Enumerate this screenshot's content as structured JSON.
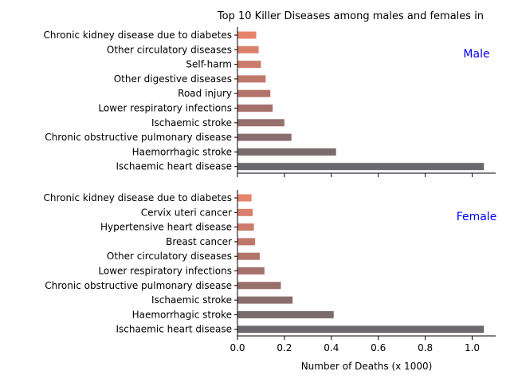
{
  "chart_data": {
    "type": "bar",
    "orientation": "horizontal",
    "title": "Top 10 Killer Diseases among males and females in",
    "xlabel": "Number of Deaths (x 1000)",
    "xlim": [
      0,
      1.1
    ],
    "x_ticks": [
      "0.0",
      "0.2",
      "0.4",
      "0.6",
      "0.8",
      "1.0"
    ],
    "x_tick_values": [
      0,
      0.2,
      0.4,
      0.6,
      0.8,
      1.0
    ],
    "colors": [
      "#e8836b",
      "#d97f6c",
      "#cc7c6c",
      "#bf786b",
      "#b3746b",
      "#a6716b",
      "#97706c",
      "#8a6d6d",
      "#7b6a6e",
      "#6b6870"
    ],
    "panels": [
      {
        "label": "Male",
        "label_color": "#0000ff",
        "categories": [
          "Chronic kidney disease due to diabetes",
          "Other circulatory diseases",
          "Self-harm",
          "Other digestive diseases",
          "Road injury",
          "Lower respiratory infections",
          "Ischaemic stroke",
          "Chronic obstructive pulmonary disease",
          "Haemorrhagic stroke",
          "Ischaemic heart disease"
        ],
        "values": [
          0.08,
          0.09,
          0.1,
          0.12,
          0.14,
          0.15,
          0.2,
          0.23,
          0.42,
          1.05
        ]
      },
      {
        "label": "Female",
        "label_color": "#0000ff",
        "categories": [
          "Chronic kidney disease due to diabetes",
          "Cervix uteri cancer",
          "Hypertensive heart disease",
          "Breast cancer",
          "Other circulatory diseases",
          "Lower respiratory infections",
          "Chronic obstructive pulmonary disease",
          "Ischaemic stroke",
          "Haemorrhagic stroke",
          "Ischaemic heart disease"
        ],
        "values": [
          0.06,
          0.065,
          0.07,
          0.075,
          0.095,
          0.115,
          0.185,
          0.235,
          0.41,
          1.05
        ]
      }
    ]
  }
}
